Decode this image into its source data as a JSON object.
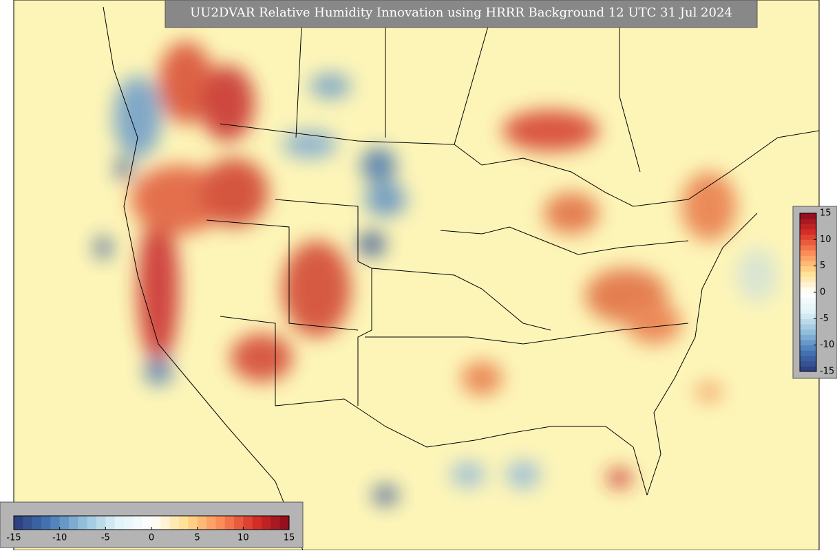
{
  "title": "UU2DVAR Relative Humidity Innovation using HRRR Background 12 UTC 31 Jul 2024",
  "colorbar": {
    "range": [
      -15,
      15
    ],
    "ticks": [
      -15,
      -10,
      -5,
      0,
      5,
      10,
      15
    ],
    "colors": [
      "#2a3a7a",
      "#4575b4",
      "#91bfdb",
      "#e0f3f8",
      "#ffffff",
      "#fee090",
      "#fc8d59",
      "#d73027",
      "#8b0a1e"
    ]
  }
}
